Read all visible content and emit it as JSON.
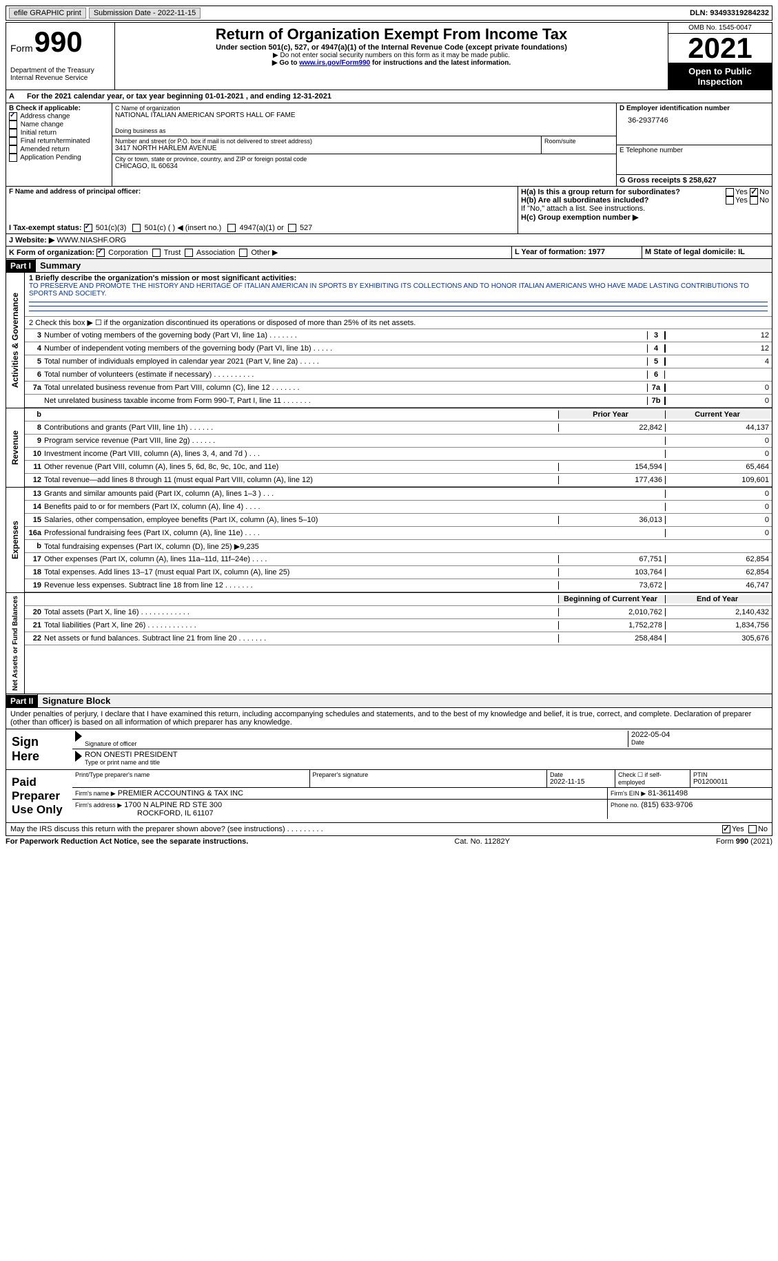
{
  "topbar": {
    "efile": "efile GRAPHIC print",
    "submission_label": "Submission Date - 2022-11-15",
    "dln_label": "DLN: 93493319284232"
  },
  "header": {
    "form_word": "Form",
    "form_num": "990",
    "dept": "Department of the Treasury\nInternal Revenue Service",
    "title": "Return of Organization Exempt From Income Tax",
    "sub": "Under section 501(c), 527, or 4947(a)(1) of the Internal Revenue Code (except private foundations)",
    "note1": "▶ Do not enter social security numbers on this form as it may be made public.",
    "note2_pre": "▶ Go to ",
    "note2_link": "www.irs.gov/Form990",
    "note2_post": " for instructions and the latest information.",
    "omb": "OMB No. 1545-0047",
    "year": "2021",
    "inspect": "Open to Public Inspection"
  },
  "period": {
    "line": "For the 2021 calendar year, or tax year beginning 01-01-2021   , and ending 12-31-2021"
  },
  "sectionB": {
    "label": "B Check if applicable:",
    "items": [
      {
        "label": "Address change",
        "checked": true
      },
      {
        "label": "Name change",
        "checked": false
      },
      {
        "label": "Initial return",
        "checked": false
      },
      {
        "label": "Final return/terminated",
        "checked": false
      },
      {
        "label": "Amended return",
        "checked": false
      },
      {
        "label": "Application Pending",
        "checked": false
      }
    ]
  },
  "sectionC": {
    "name_label": "C Name of organization",
    "name": "NATIONAL ITALIAN AMERICAN SPORTS HALL OF FAME",
    "dba_label": "Doing business as",
    "street_label": "Number and street (or P.O. box if mail is not delivered to street address)",
    "room_label": "Room/suite",
    "street": "3417 NORTH HARLEM AVENUE",
    "city_label": "City or town, state or province, country, and ZIP or foreign postal code",
    "city": "CHICAGO, IL  60634"
  },
  "sectionD": {
    "label": "D Employer identification number",
    "value": "36-2937746"
  },
  "sectionE": {
    "label": "E Telephone number",
    "value": ""
  },
  "sectionG": {
    "label": "G Gross receipts $ 258,627"
  },
  "sectionF": {
    "label": "F  Name and address of principal officer:"
  },
  "sectionH": {
    "ha": "H(a)  Is this a group return for subordinates?",
    "hb": "H(b)  Are all subordinates included?",
    "hnote": "If \"No,\" attach a list. See instructions.",
    "hc": "H(c)  Group exemption number ▶",
    "yes": "Yes",
    "no": "No"
  },
  "sectionI": {
    "label": "I   Tax-exempt status:",
    "opts": [
      "501(c)(3)",
      "501(c) (  ) ◀ (insert no.)",
      "4947(a)(1) or",
      "527"
    ]
  },
  "sectionJ": {
    "label": "J   Website: ▶",
    "value": "WWW.NIASHF.ORG"
  },
  "sectionK": {
    "label": "K Form of organization:",
    "opts": [
      "Corporation",
      "Trust",
      "Association",
      "Other ▶"
    ]
  },
  "sectionL": {
    "label": "L Year of formation: 1977"
  },
  "sectionM": {
    "label": "M State of legal domicile: IL"
  },
  "part1": {
    "label": "Part I",
    "title": "Summary"
  },
  "mission": {
    "q": "1   Briefly describe the organization's mission or most significant activities:",
    "text": "TO PRESERVE AND PROMOTE THE HISTORY AND HERITAGE OF ITALIAN AMERICAN IN SPORTS BY EXHIBITING ITS COLLECTIONS AND TO HONOR ITALIAN AMERICANS WHO HAVE MADE LASTING CONTRIBUTIONS TO SPORTS AND SOCIETY."
  },
  "line2": "2   Check this box ▶ ☐ if the organization discontinued its operations or disposed of more than 25% of its net assets.",
  "gov_lines": [
    {
      "n": "3",
      "d": "Number of voting members of the governing body (Part VI, line 1a)  .     .     .     .     .     .     .",
      "b": "3",
      "v": "12"
    },
    {
      "n": "4",
      "d": "Number of independent voting members of the governing body (Part VI, line 1b)  .     .     .     .     .",
      "b": "4",
      "v": "12"
    },
    {
      "n": "5",
      "d": "Total number of individuals employed in calendar year 2021 (Part V, line 2a)  .     .     .     .     .",
      "b": "5",
      "v": "4"
    },
    {
      "n": "6",
      "d": "Total number of volunteers (estimate if necessary)    .     .     .     .     .     .     .     .     .     .",
      "b": "6",
      "v": ""
    },
    {
      "n": "7a",
      "d": "Total unrelated business revenue from Part VIII, column (C), line 12   .     .     .     .     .     .     .",
      "b": "7a",
      "v": "0"
    },
    {
      "n": "",
      "d": "Net unrelated business taxable income from Form 990-T, Part I, line 11  .     .     .     .     .     .     .",
      "b": "7b",
      "v": "0"
    }
  ],
  "col_hdr": {
    "prior": "Prior Year",
    "current": "Current Year"
  },
  "revenue": [
    {
      "n": "8",
      "d": "Contributions and grants (Part VIII, line 1h)   .     .     .     .     .     .",
      "p": "22,842",
      "c": "44,137"
    },
    {
      "n": "9",
      "d": "Program service revenue (Part VIII, line 2g)   .     .     .     .     .     .",
      "p": "",
      "c": "0"
    },
    {
      "n": "10",
      "d": "Investment income (Part VIII, column (A), lines 3, 4, and 7d )   .     .     .",
      "p": "",
      "c": "0"
    },
    {
      "n": "11",
      "d": "Other revenue (Part VIII, column (A), lines 5, 6d, 8c, 9c, 10c, and 11e)",
      "p": "154,594",
      "c": "65,464"
    },
    {
      "n": "12",
      "d": "Total revenue—add lines 8 through 11 (must equal Part VIII, column (A), line 12)",
      "p": "177,436",
      "c": "109,601"
    }
  ],
  "expenses": [
    {
      "n": "13",
      "d": "Grants and similar amounts paid (Part IX, column (A), lines 1–3 )  .     .     .",
      "p": "",
      "c": "0"
    },
    {
      "n": "14",
      "d": "Benefits paid to or for members (Part IX, column (A), line 4)  .     .     .     .",
      "p": "",
      "c": "0"
    },
    {
      "n": "15",
      "d": "Salaries, other compensation, employee benefits (Part IX, column (A), lines 5–10)",
      "p": "36,013",
      "c": "0"
    },
    {
      "n": "16a",
      "d": "Professional fundraising fees (Part IX, column (A), line 11e)   .     .     .     .",
      "p": "",
      "c": "0"
    },
    {
      "n": "b",
      "d": "Total fundraising expenses (Part IX, column (D), line 25) ▶9,235",
      "p": "shaded",
      "c": "shaded"
    },
    {
      "n": "17",
      "d": "Other expenses (Part IX, column (A), lines 11a–11d, 11f–24e)  .     .     .     .",
      "p": "67,751",
      "c": "62,854"
    },
    {
      "n": "18",
      "d": "Total expenses. Add lines 13–17 (must equal Part IX, column (A), line 25)",
      "p": "103,764",
      "c": "62,854"
    },
    {
      "n": "19",
      "d": "Revenue less expenses. Subtract line 18 from line 12  .     .     .     .     .     .     .",
      "p": "73,672",
      "c": "46,747"
    }
  ],
  "net_hdr": {
    "p": "Beginning of Current Year",
    "c": "End of Year"
  },
  "netassets": [
    {
      "n": "20",
      "d": "Total assets (Part X, line 16)  .     .     .     .     .     .     .     .     .     .     .     .",
      "p": "2,010,762",
      "c": "2,140,432"
    },
    {
      "n": "21",
      "d": "Total liabilities (Part X, line 26)  .     .     .     .     .     .     .     .     .     .     .     .",
      "p": "1,752,278",
      "c": "1,834,756"
    },
    {
      "n": "22",
      "d": "Net assets or fund balances. Subtract line 21 from line 20  .     .     .     .     .     .     .",
      "p": "258,484",
      "c": "305,676"
    }
  ],
  "part2": {
    "label": "Part II",
    "title": "Signature Block"
  },
  "declare": "Under penalties of perjury, I declare that I have examined this return, including accompanying schedules and statements, and to the best of my knowledge and belief, it is true, correct, and complete. Declaration of preparer (other than officer) is based on all information of which preparer has any knowledge.",
  "sign": {
    "here": "Sign Here",
    "sig_label": "Signature of officer",
    "date": "2022-05-04",
    "date_label": "Date",
    "name": "RON ONESTI PRESIDENT",
    "name_label": "Type or print name and title"
  },
  "paid": {
    "title": "Paid Preparer Use Only",
    "h1": "Print/Type preparer's name",
    "h2": "Preparer's signature",
    "h3": "Date",
    "h3v": "2022-11-15",
    "h4": "Check ☐ if self-employed",
    "h5": "PTIN",
    "h5v": "P01200011",
    "firm_label": "Firm's name    ▶",
    "firm": "PREMIER ACCOUNTING & TAX INC",
    "ein_label": "Firm's EIN ▶",
    "ein": "81-3611498",
    "addr_label": "Firm's address ▶",
    "addr1": "1700 N ALPINE RD STE 300",
    "addr2": "ROCKFORD, IL  61107",
    "phone_label": "Phone no.",
    "phone": "(815) 633-9706"
  },
  "discuss": "May the IRS discuss this return with the preparer shown above? (see instructions)  .     .     .     .     .     .     .     .     .",
  "footer": {
    "left": "For Paperwork Reduction Act Notice, see the separate instructions.",
    "mid": "Cat. No. 11282Y",
    "right": "Form 990 (2021)"
  },
  "side_labels": {
    "ag": "Activities & Governance",
    "rev": "Revenue",
    "exp": "Expenses",
    "net": "Net Assets or Fund Balances"
  }
}
